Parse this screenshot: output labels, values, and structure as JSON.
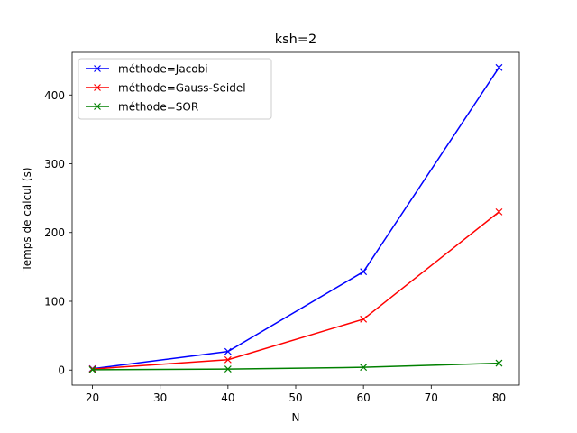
{
  "chart_data": {
    "type": "line",
    "title": "ksh=2",
    "xlabel": "N",
    "ylabel": "Temps de calcul (s)",
    "x": [
      20,
      40,
      60,
      80
    ],
    "xlim": [
      17,
      83
    ],
    "ylim": [
      -22,
      462
    ],
    "xticks": [
      20,
      30,
      40,
      50,
      60,
      70,
      80
    ],
    "yticks": [
      0,
      100,
      200,
      300,
      400
    ],
    "grid": false,
    "legend_position": "top-left",
    "marker": "x",
    "series": [
      {
        "name": "méthode=Jacobi",
        "color": "#0000ff",
        "values": [
          2,
          27,
          143,
          440
        ]
      },
      {
        "name": "méthode=Gauss-Seidel",
        "color": "#ff0000",
        "values": [
          1.5,
          15,
          74,
          230
        ]
      },
      {
        "name": "méthode=SOR",
        "color": "#008000",
        "values": [
          0.5,
          1.5,
          4,
          10
        ]
      }
    ]
  }
}
